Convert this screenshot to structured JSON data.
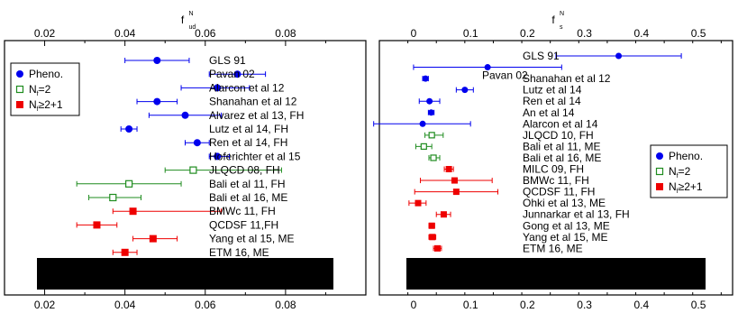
{
  "chart_data": [
    {
      "type": "scatter",
      "title": "",
      "xlabel": "f_ud^N",
      "xlabel_main": "f",
      "xlabel_sup": "N",
      "xlabel_sub": "ud",
      "xlim": [
        0.01,
        0.1
      ],
      "xticks": [
        0.02,
        0.04,
        0.06,
        0.08
      ],
      "xtick_labels": [
        "0.02",
        "0.04",
        "0.06",
        "0.08"
      ],
      "grid": false,
      "legend_position": "top-left",
      "legend": [
        {
          "main": "Pheno.",
          "sub": "",
          "rest": "",
          "group": "pheno"
        },
        {
          "main": "N",
          "sub": "f",
          "rest": "=2",
          "group": "nf2"
        },
        {
          "main": "N",
          "sub": "f",
          "rest": "≥2+1",
          "group": "nf21"
        }
      ],
      "entries": [
        {
          "label": "GLS 91",
          "group": "pheno",
          "value": 0.048,
          "lo": 0.04,
          "hi": 0.056
        },
        {
          "label": "Pavan 02",
          "group": "pheno",
          "value": 0.068,
          "lo": 0.061,
          "hi": 0.075
        },
        {
          "label": "Alarcon et al 12",
          "group": "pheno",
          "value": 0.063,
          "lo": 0.054,
          "hi": 0.071
        },
        {
          "label": "Shanahan et al 12",
          "group": "pheno",
          "value": 0.048,
          "lo": 0.043,
          "hi": 0.053
        },
        {
          "label": "Alvarez et al 13, FH",
          "group": "pheno",
          "value": 0.055,
          "lo": 0.046,
          "hi": 0.064
        },
        {
          "label": "Lutz et al 14, FH",
          "group": "pheno",
          "value": 0.041,
          "lo": 0.039,
          "hi": 0.043
        },
        {
          "label": "Ren et al 14, FH",
          "group": "pheno",
          "value": 0.058,
          "lo": 0.055,
          "hi": 0.061
        },
        {
          "label": "Hoferichter et al 15",
          "group": "pheno",
          "value": 0.063,
          "lo": 0.061,
          "hi": 0.066
        },
        {
          "label": "JLQCD 08, FH",
          "group": "nf2",
          "value": 0.057,
          "lo": 0.05,
          "hi": 0.079
        },
        {
          "label": "Bali et al 11, FH",
          "group": "nf2",
          "value": 0.041,
          "lo": 0.028,
          "hi": 0.054
        },
        {
          "label": "Bali et al 16, ME",
          "group": "nf2",
          "value": 0.037,
          "lo": 0.031,
          "hi": 0.044
        },
        {
          "label": "BMWc 11, FH",
          "group": "nf21",
          "value": 0.042,
          "lo": 0.037,
          "hi": 0.064
        },
        {
          "label": "QCDSF 11,FH",
          "group": "nf21",
          "value": 0.033,
          "lo": 0.028,
          "hi": 0.038
        },
        {
          "label": "Yang et al 15, ME",
          "group": "nf21",
          "value": 0.047,
          "lo": 0.042,
          "hi": 0.053
        },
        {
          "label": "ETM 16, ME",
          "group": "nf21",
          "value": 0.04,
          "lo": 0.037,
          "hi": 0.043
        }
      ]
    },
    {
      "type": "scatter",
      "title": "",
      "xlabel": "f_s^N",
      "xlabel_main": "f",
      "xlabel_sup": "N",
      "xlabel_sub": "s",
      "xlim": [
        -0.06,
        0.56
      ],
      "xticks": [
        0,
        0.1,
        0.2,
        0.3,
        0.4,
        0.5
      ],
      "xtick_labels": [
        "0",
        "0.1",
        "0.2",
        "0.3",
        "0.4",
        "0.5"
      ],
      "grid": false,
      "legend_position": "right",
      "legend": [
        {
          "main": "Pheno.",
          "sub": "",
          "rest": "",
          "group": "pheno"
        },
        {
          "main": "N",
          "sub": "f",
          "rest": "=2",
          "group": "nf2"
        },
        {
          "main": "N",
          "sub": "f",
          "rest": "≥2+1",
          "group": "nf21"
        }
      ],
      "entries": [
        {
          "label": "GLS 91",
          "group": "pheno",
          "value": 0.36,
          "lo": 0.25,
          "hi": 0.47
        },
        {
          "label": "Pavan 02",
          "group": "pheno",
          "value": 0.13,
          "lo": 0.0,
          "hi": 0.26
        },
        {
          "label": "Shanahan et al 12",
          "group": "pheno",
          "value": 0.021,
          "lo": 0.016,
          "hi": 0.026
        },
        {
          "label": "Lutz et al 14",
          "group": "pheno",
          "value": 0.09,
          "lo": 0.075,
          "hi": 0.105
        },
        {
          "label": "Ren et al 14",
          "group": "pheno",
          "value": 0.028,
          "lo": 0.01,
          "hi": 0.046
        },
        {
          "label": "An et al 14",
          "group": "pheno",
          "value": 0.031,
          "lo": 0.026,
          "hi": 0.036
        },
        {
          "label": "Alarcon et al 14",
          "group": "pheno",
          "value": 0.016,
          "lo": -0.07,
          "hi": 0.1
        },
        {
          "label": "JLQCD 10, FH",
          "group": "nf2",
          "value": 0.032,
          "lo": 0.02,
          "hi": 0.052
        },
        {
          "label": "Bali et al 11, ME",
          "group": "nf2",
          "value": 0.018,
          "lo": 0.004,
          "hi": 0.032
        },
        {
          "label": "Bali et al 16, ME",
          "group": "nf2",
          "value": 0.035,
          "lo": 0.027,
          "hi": 0.046
        },
        {
          "label": "MILC 09, FH",
          "group": "nf21",
          "value": 0.062,
          "lo": 0.054,
          "hi": 0.07
        },
        {
          "label": "BMWc 11, FH",
          "group": "nf21",
          "value": 0.072,
          "lo": 0.012,
          "hi": 0.138
        },
        {
          "label": "QCDSF 11, FH",
          "group": "nf21",
          "value": 0.075,
          "lo": 0.002,
          "hi": 0.148
        },
        {
          "label": "Ohki et al 13, ME",
          "group": "nf21",
          "value": 0.008,
          "lo": -0.008,
          "hi": 0.022
        },
        {
          "label": "Junnarkar et al 13, FH",
          "group": "nf21",
          "value": 0.053,
          "lo": 0.04,
          "hi": 0.065
        },
        {
          "label": "Gong et al 13, ME",
          "group": "nf21",
          "value": 0.032,
          "lo": 0.027,
          "hi": 0.037
        },
        {
          "label": "Yang et al 15, ME",
          "group": "nf21",
          "value": 0.033,
          "lo": 0.027,
          "hi": 0.039
        },
        {
          "label": "ETM 16, ME",
          "group": "nf21",
          "value": 0.042,
          "lo": 0.035,
          "hi": 0.049
        }
      ]
    }
  ],
  "colors": {
    "pheno": "#0000ee",
    "nf2": "#1f8c1f",
    "nf21": "#ee0000",
    "axis": "#000000"
  },
  "icons": {
    "pheno": "filled-circle-icon",
    "nf2": "open-square-icon",
    "nf21": "filled-square-icon"
  }
}
